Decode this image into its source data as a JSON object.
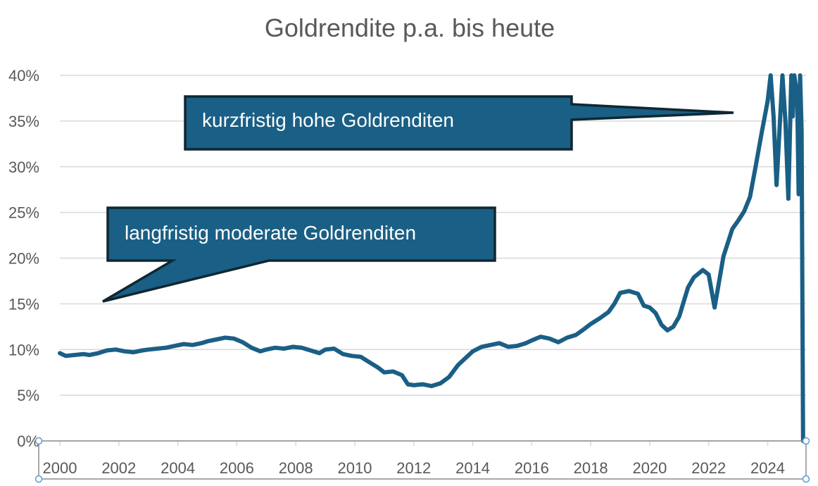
{
  "chart_data": {
    "type": "line",
    "title": "Goldrendite p.a. bis heute",
    "xlabel": "",
    "ylabel": "",
    "x_ticks": [
      "2000",
      "2002",
      "2004",
      "2006",
      "2008",
      "2010",
      "2012",
      "2014",
      "2016",
      "2018",
      "2020",
      "2022",
      "2024"
    ],
    "y_ticks": [
      "0%",
      "5%",
      "10%",
      "15%",
      "20%",
      "25%",
      "30%",
      "35%",
      "40%"
    ],
    "xlim": [
      2000,
      2025.3
    ],
    "ylim": [
      0,
      40
    ],
    "grid": true,
    "series": [
      {
        "color": "#1a5f85",
        "points": [
          [
            2000.0,
            9.6
          ],
          [
            2000.2,
            9.3
          ],
          [
            2000.5,
            9.4
          ],
          [
            2000.8,
            9.5
          ],
          [
            2001.0,
            9.4
          ],
          [
            2001.3,
            9.6
          ],
          [
            2001.6,
            9.9
          ],
          [
            2001.9,
            10.0
          ],
          [
            2002.2,
            9.8
          ],
          [
            2002.5,
            9.7
          ],
          [
            2002.8,
            9.9
          ],
          [
            2003.0,
            10.0
          ],
          [
            2003.3,
            10.1
          ],
          [
            2003.6,
            10.2
          ],
          [
            2003.9,
            10.4
          ],
          [
            2004.2,
            10.6
          ],
          [
            2004.5,
            10.5
          ],
          [
            2004.8,
            10.7
          ],
          [
            2005.0,
            10.9
          ],
          [
            2005.3,
            11.1
          ],
          [
            2005.6,
            11.3
          ],
          [
            2005.9,
            11.2
          ],
          [
            2006.2,
            10.8
          ],
          [
            2006.5,
            10.2
          ],
          [
            2006.8,
            9.8
          ],
          [
            2007.0,
            10.0
          ],
          [
            2007.3,
            10.2
          ],
          [
            2007.6,
            10.1
          ],
          [
            2007.9,
            10.3
          ],
          [
            2008.2,
            10.2
          ],
          [
            2008.5,
            9.9
          ],
          [
            2008.8,
            9.6
          ],
          [
            2009.0,
            10.0
          ],
          [
            2009.3,
            10.1
          ],
          [
            2009.6,
            9.5
          ],
          [
            2009.9,
            9.3
          ],
          [
            2010.2,
            9.2
          ],
          [
            2010.5,
            8.6
          ],
          [
            2010.8,
            8.0
          ],
          [
            2011.0,
            7.5
          ],
          [
            2011.3,
            7.6
          ],
          [
            2011.6,
            7.2
          ],
          [
            2011.8,
            6.2
          ],
          [
            2012.0,
            6.1
          ],
          [
            2012.3,
            6.2
          ],
          [
            2012.6,
            6.0
          ],
          [
            2012.9,
            6.3
          ],
          [
            2013.2,
            7.0
          ],
          [
            2013.5,
            8.3
          ],
          [
            2013.8,
            9.2
          ],
          [
            2014.0,
            9.8
          ],
          [
            2014.3,
            10.3
          ],
          [
            2014.6,
            10.5
          ],
          [
            2014.9,
            10.7
          ],
          [
            2015.2,
            10.3
          ],
          [
            2015.5,
            10.4
          ],
          [
            2015.8,
            10.7
          ],
          [
            2016.0,
            11.0
          ],
          [
            2016.3,
            11.4
          ],
          [
            2016.6,
            11.2
          ],
          [
            2016.9,
            10.8
          ],
          [
            2017.2,
            11.3
          ],
          [
            2017.5,
            11.6
          ],
          [
            2017.8,
            12.3
          ],
          [
            2018.0,
            12.8
          ],
          [
            2018.3,
            13.4
          ],
          [
            2018.6,
            14.1
          ],
          [
            2018.8,
            15.0
          ],
          [
            2019.0,
            16.2
          ],
          [
            2019.3,
            16.4
          ],
          [
            2019.6,
            16.1
          ],
          [
            2019.8,
            14.8
          ],
          [
            2020.0,
            14.6
          ],
          [
            2020.2,
            14.0
          ],
          [
            2020.4,
            12.7
          ],
          [
            2020.6,
            12.1
          ],
          [
            2020.8,
            12.5
          ],
          [
            2021.0,
            13.6
          ],
          [
            2021.3,
            16.8
          ],
          [
            2021.5,
            17.9
          ],
          [
            2021.8,
            18.7
          ],
          [
            2022.0,
            18.2
          ],
          [
            2022.2,
            14.6
          ],
          [
            2022.5,
            20.2
          ],
          [
            2022.8,
            23.2
          ],
          [
            2023.0,
            24.1
          ],
          [
            2023.2,
            25.1
          ],
          [
            2023.4,
            26.7
          ],
          [
            2023.6,
            30.2
          ],
          [
            2023.8,
            33.8
          ],
          [
            2024.0,
            37.2
          ],
          [
            2024.1,
            40.0
          ],
          [
            2024.2,
            35.5
          ],
          [
            2024.3,
            28.0
          ],
          [
            2024.4,
            34.0
          ],
          [
            2024.5,
            40.0
          ],
          [
            2024.6,
            35.0
          ],
          [
            2024.7,
            26.5
          ],
          [
            2024.8,
            40.0
          ],
          [
            2024.85,
            35.5
          ],
          [
            2024.9,
            40.0
          ],
          [
            2025.0,
            38.0
          ],
          [
            2025.05,
            27.0
          ],
          [
            2025.1,
            40.0
          ],
          [
            2025.15,
            34.0
          ],
          [
            2025.2,
            0.0
          ]
        ]
      }
    ],
    "annotations": [
      "kurzfristig hohe Goldrenditen",
      "langfristig moderate Goldrenditen"
    ]
  },
  "colors": {
    "line": "#1a5f85",
    "callout_fill": "#1a5f85",
    "callout_border": "#0f2733",
    "grid": "#d9d9d9",
    "text": "#595959"
  }
}
